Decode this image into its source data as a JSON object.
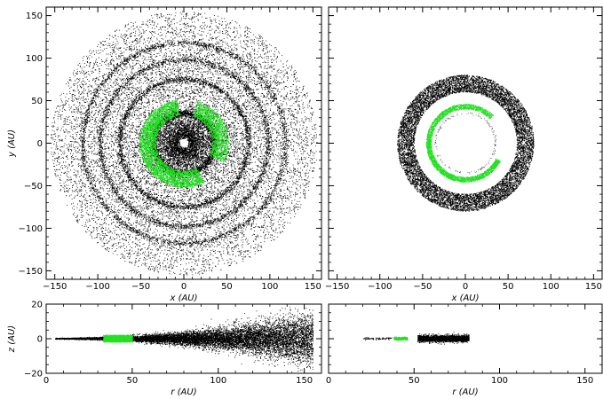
{
  "chart_data": [
    {
      "id": "top-left",
      "type": "scatter",
      "description_shape": "disk-with-rings",
      "xlabel": "x (AU)",
      "ylabel": "y (AU)",
      "xlim": [
        -160,
        160
      ],
      "ylim": [
        -160,
        160
      ],
      "xticks": [
        -150,
        -100,
        -50,
        0,
        50,
        100,
        150
      ],
      "yticks": [
        -150,
        -100,
        -50,
        0,
        50,
        100,
        150
      ],
      "xtick_labels": [
        "−150",
        "−100",
        "−50",
        "0",
        "50",
        "100",
        "150"
      ],
      "ytick_labels": [
        "−150",
        "−100",
        "−50",
        "0",
        "50",
        "100",
        "150"
      ],
      "show_xlabel": true,
      "show_ylabel": true,
      "show_yticklabels": true,
      "disk_outer_radius": 155,
      "disk_inner_radius": 5,
      "rings_radii": [
        35,
        75,
        98,
        118
      ],
      "green_arc": {
        "r_inner": 33,
        "r_outer": 52
      },
      "point_color": "#000000",
      "highlight_color": "#22e022"
    },
    {
      "id": "top-right",
      "type": "scatter",
      "description_shape": "annulus",
      "xlabel": "x (AU)",
      "ylabel": "",
      "xlim": [
        -160,
        160
      ],
      "ylim": [
        -160,
        160
      ],
      "xticks": [
        -150,
        -100,
        -50,
        0,
        50,
        100,
        150
      ],
      "xtick_labels": [
        "−150",
        "−100",
        "−50",
        "0",
        "50",
        "100",
        "150"
      ],
      "yticks": [
        -150,
        -100,
        -50,
        0,
        50,
        100,
        150
      ],
      "show_xlabel": true,
      "show_ylabel": false,
      "show_yticklabels": false,
      "annulus": {
        "r_inner": 60,
        "r_outer": 80
      },
      "green_arc": {
        "r_inner": 40,
        "r_outer": 46
      },
      "dashed_circle_radius": 35,
      "point_color": "#000000",
      "highlight_color": "#22e022"
    },
    {
      "id": "bottom-left",
      "type": "scatter",
      "description_shape": "flared-disk-edge-on",
      "xlabel": "r (AU)",
      "ylabel": "z (AU)",
      "xlim": [
        0,
        160
      ],
      "ylim": [
        -20,
        20
      ],
      "xticks": [
        0,
        50,
        100,
        150
      ],
      "xtick_labels": [
        "0",
        "50",
        "100",
        "150"
      ],
      "yticks": [
        -20,
        0,
        20
      ],
      "ytick_labels": [
        "−20",
        "0",
        "20"
      ],
      "show_xlabel": true,
      "show_ylabel": true,
      "show_yticklabels": true,
      "green_band": {
        "r_min": 33,
        "r_max": 50,
        "half_height": 2
      },
      "flare": {
        "r_start": 5,
        "r_end": 155
      },
      "point_color": "#000000",
      "highlight_color": "#22e022"
    },
    {
      "id": "bottom-right",
      "type": "scatter",
      "description_shape": "thin-edge-on-ring",
      "xlabel": "r (AU)",
      "ylabel": "",
      "xlim": [
        0,
        160
      ],
      "ylim": [
        -20,
        20
      ],
      "xticks": [
        0,
        50,
        100,
        150
      ],
      "xtick_labels": [
        "0",
        "50",
        "100",
        "150"
      ],
      "yticks": [
        -20,
        0,
        20
      ],
      "show_xlabel": true,
      "show_ylabel": false,
      "show_yticklabels": false,
      "green_band": {
        "r_min": 38,
        "r_max": 46,
        "half_height": 1
      },
      "black_band": {
        "r_min": 52,
        "r_max": 82,
        "half_height": 2
      },
      "sparse_band": {
        "r_min": 20,
        "r_max": 37
      },
      "point_color": "#000000",
      "highlight_color": "#22e022"
    }
  ]
}
